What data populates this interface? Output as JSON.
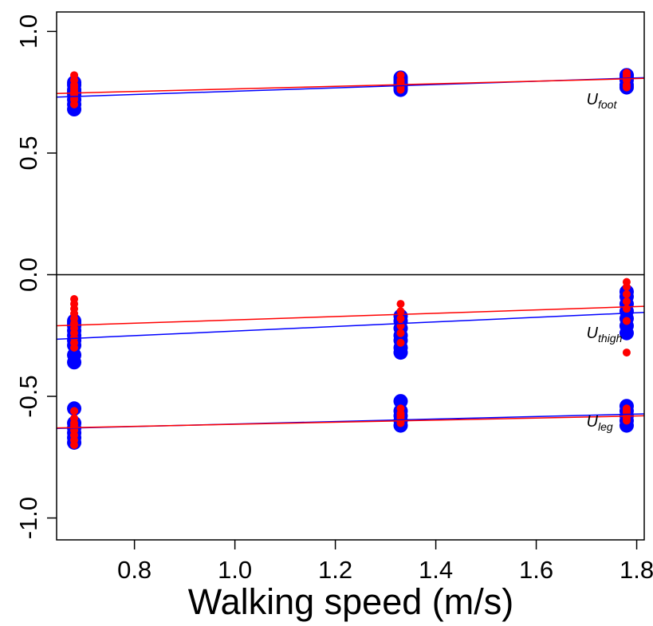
{
  "chart_data": {
    "type": "scatter",
    "xlabel": "Walking speed (m/s)",
    "ylabel": "",
    "xlim": [
      0.645,
      1.815
    ],
    "ylim": [
      -1.09,
      1.08
    ],
    "x_ticks": [
      {
        "value": 0.8,
        "label": "0.8"
      },
      {
        "value": 1.0,
        "label": "1.0"
      },
      {
        "value": 1.2,
        "label": "1.2"
      },
      {
        "value": 1.4,
        "label": "1.4"
      },
      {
        "value": 1.6,
        "label": "1.6"
      },
      {
        "value": 1.8,
        "label": "1.8"
      }
    ],
    "y_ticks": [
      {
        "value": 1.0,
        "label": "1.0"
      },
      {
        "value": 0.5,
        "label": "0.5"
      },
      {
        "value": 0.0,
        "label": "0.0"
      },
      {
        "value": -0.5,
        "label": "-0.5"
      },
      {
        "value": -1.0,
        "label": "-1.0"
      }
    ],
    "reference_lines": [
      {
        "y": 0.0
      }
    ],
    "colors": {
      "blue": "#0000ff",
      "red": "#ff0000"
    },
    "annotations": [
      {
        "main": "U",
        "sub": "foot",
        "x": 1.7,
        "y": 0.7
      },
      {
        "main": "U",
        "sub": "thigh",
        "x": 1.7,
        "y": -0.26
      },
      {
        "main": "U",
        "sub": "leg",
        "x": 1.7,
        "y": -0.625
      }
    ],
    "series": [
      {
        "group": "foot",
        "color": "blue",
        "marker": "large",
        "x": [
          0.68,
          0.68,
          0.68,
          0.68,
          0.68,
          0.68,
          0.68,
          0.68,
          1.33,
          1.33,
          1.33,
          1.33,
          1.33,
          1.33,
          1.78,
          1.78,
          1.78,
          1.78,
          1.78,
          1.78
        ],
        "y": [
          0.68,
          0.7,
          0.72,
          0.74,
          0.75,
          0.76,
          0.78,
          0.79,
          0.76,
          0.77,
          0.78,
          0.79,
          0.8,
          0.81,
          0.77,
          0.78,
          0.8,
          0.81,
          0.82,
          0.82
        ]
      },
      {
        "group": "foot",
        "color": "red",
        "marker": "small",
        "x": [
          0.68,
          0.68,
          0.68,
          0.68,
          0.68,
          0.68,
          0.68,
          0.68,
          0.68,
          0.68,
          1.33,
          1.33,
          1.33,
          1.33,
          1.33,
          1.33,
          1.78,
          1.78,
          1.78,
          1.78,
          1.78,
          1.78
        ],
        "y": [
          0.7,
          0.72,
          0.73,
          0.74,
          0.75,
          0.76,
          0.77,
          0.78,
          0.8,
          0.82,
          0.76,
          0.77,
          0.78,
          0.79,
          0.8,
          0.82,
          0.77,
          0.78,
          0.8,
          0.81,
          0.82,
          0.83
        ]
      },
      {
        "group": "thigh",
        "color": "blue",
        "marker": "large",
        "x": [
          0.68,
          0.68,
          0.68,
          0.68,
          0.68,
          0.68,
          0.68,
          0.68,
          0.68,
          1.33,
          1.33,
          1.33,
          1.33,
          1.33,
          1.33,
          1.33,
          1.78,
          1.78,
          1.78,
          1.78,
          1.78,
          1.78,
          1.78
        ],
        "y": [
          -0.19,
          -0.21,
          -0.23,
          -0.25,
          -0.27,
          -0.29,
          -0.33,
          -0.36,
          -0.2,
          -0.17,
          -0.19,
          -0.22,
          -0.25,
          -0.27,
          -0.3,
          -0.32,
          -0.07,
          -0.09,
          -0.12,
          -0.15,
          -0.18,
          -0.21,
          -0.24
        ]
      },
      {
        "group": "thigh",
        "color": "red",
        "marker": "small",
        "x": [
          0.68,
          0.68,
          0.68,
          0.68,
          0.68,
          0.68,
          0.68,
          0.68,
          0.68,
          0.68,
          0.68,
          1.33,
          1.33,
          1.33,
          1.33,
          1.33,
          1.33,
          1.78,
          1.78,
          1.78,
          1.78,
          1.78,
          1.78,
          1.78
        ],
        "y": [
          -0.1,
          -0.12,
          -0.14,
          -0.16,
          -0.18,
          -0.2,
          -0.22,
          -0.24,
          -0.26,
          -0.28,
          -0.3,
          -0.12,
          -0.15,
          -0.18,
          -0.21,
          -0.24,
          -0.28,
          -0.03,
          -0.05,
          -0.08,
          -0.11,
          -0.14,
          -0.19,
          -0.32
        ]
      },
      {
        "group": "leg",
        "color": "blue",
        "marker": "large",
        "x": [
          0.68,
          0.68,
          0.68,
          0.68,
          0.68,
          0.68,
          1.33,
          1.33,
          1.33,
          1.33,
          1.33,
          1.78,
          1.78,
          1.78,
          1.78,
          1.78
        ],
        "y": [
          -0.55,
          -0.61,
          -0.63,
          -0.65,
          -0.67,
          -0.69,
          -0.52,
          -0.56,
          -0.58,
          -0.6,
          -0.62,
          -0.54,
          -0.56,
          -0.58,
          -0.6,
          -0.62
        ]
      },
      {
        "group": "leg",
        "color": "red",
        "marker": "small",
        "x": [
          0.68,
          0.68,
          0.68,
          0.68,
          0.68,
          0.68,
          0.68,
          0.68,
          0.68,
          1.33,
          1.33,
          1.33,
          1.33,
          1.33,
          1.33,
          1.78,
          1.78,
          1.78,
          1.78,
          1.78,
          1.78
        ],
        "y": [
          -0.56,
          -0.59,
          -0.61,
          -0.62,
          -0.63,
          -0.64,
          -0.66,
          -0.68,
          -0.7,
          -0.55,
          -0.57,
          -0.58,
          -0.59,
          -0.6,
          -0.61,
          -0.55,
          -0.56,
          -0.57,
          -0.58,
          -0.59,
          -0.6
        ]
      }
    ],
    "fit_lines": [
      {
        "group": "foot",
        "color": "blue",
        "x": [
          0.645,
          1.815
        ],
        "y": [
          0.73,
          0.81
        ]
      },
      {
        "group": "foot",
        "color": "red",
        "x": [
          0.645,
          1.815
        ],
        "y": [
          0.745,
          0.807
        ]
      },
      {
        "group": "thigh",
        "color": "blue",
        "x": [
          0.645,
          1.815
        ],
        "y": [
          -0.265,
          -0.155
        ]
      },
      {
        "group": "thigh",
        "color": "red",
        "x": [
          0.645,
          1.815
        ],
        "y": [
          -0.21,
          -0.13
        ]
      },
      {
        "group": "leg",
        "color": "blue",
        "x": [
          0.645,
          1.815
        ],
        "y": [
          -0.632,
          -0.572
        ]
      },
      {
        "group": "leg",
        "color": "red",
        "x": [
          0.645,
          1.815
        ],
        "y": [
          -0.63,
          -0.58
        ]
      }
    ]
  }
}
